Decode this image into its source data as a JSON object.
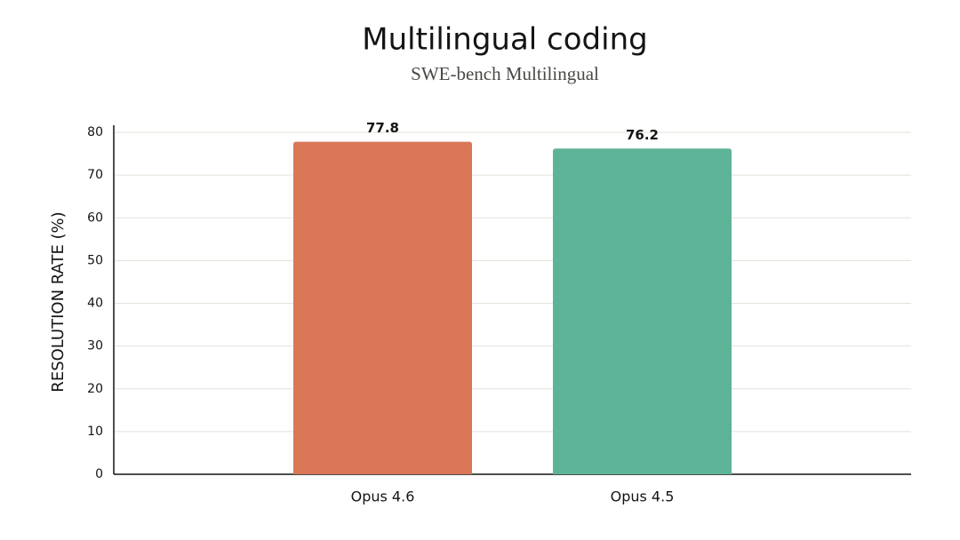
{
  "chart_data": {
    "type": "bar",
    "title": "Multilingual coding",
    "subtitle": "SWE-bench Multilingual",
    "y_label": "RESOLUTION RATE (%)",
    "categories": [
      "Opus 4.6",
      "Opus 4.5"
    ],
    "values": [
      77.8,
      76.2
    ],
    "colors": [
      "#d97757",
      "#5db398"
    ],
    "ylim": [
      0,
      80
    ],
    "yticks": [
      0,
      10,
      20,
      30,
      40,
      50,
      60,
      70,
      80
    ],
    "grid": true
  }
}
